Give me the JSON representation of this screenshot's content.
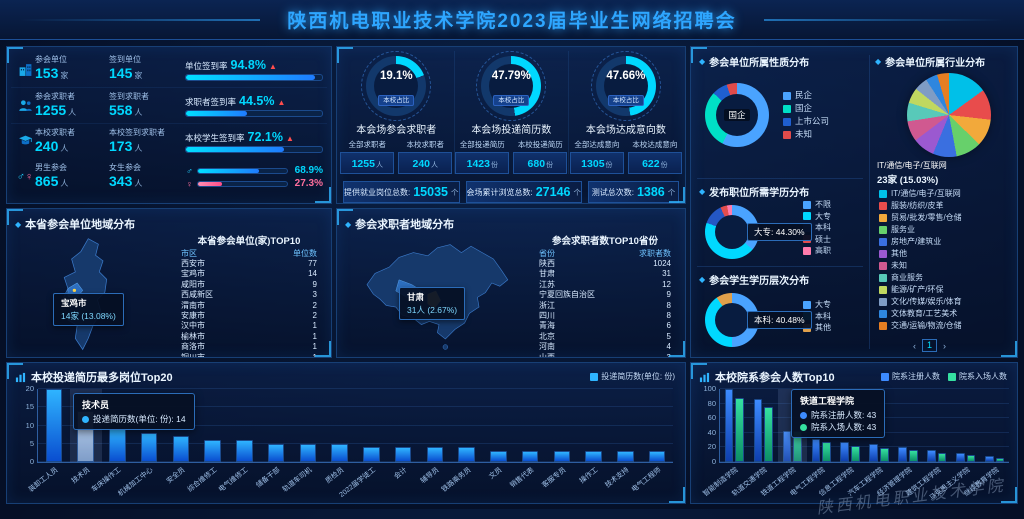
{
  "header": {
    "title": "陕西机电职业技术学院2023届毕业生网络招聘会"
  },
  "colors": {
    "accent_cyan": "#00d8ff",
    "accent_blue": "#2f7bff",
    "up_arrow_red": "#ff4d4d",
    "female_pink": "#ff6e9c",
    "green": "#35e0a1"
  },
  "stats_panel": {
    "rows": [
      {
        "icon": "building-icon",
        "groups": [
          {
            "label": "参会单位",
            "value": "153",
            "unit": "家"
          },
          {
            "label": "签到单位",
            "value": "145",
            "unit": "家"
          }
        ],
        "rate_label": "单位签到率",
        "rate": "94.8%",
        "pct": 94.8,
        "arrow": "▲"
      },
      {
        "icon": "jobseekers-icon",
        "groups": [
          {
            "label": "参会求职者",
            "value": "1255",
            "unit": "人"
          },
          {
            "label": "签到求职者",
            "value": "558",
            "unit": "人"
          }
        ],
        "rate_label": "求职者签到率",
        "rate": "44.5%",
        "pct": 44.5,
        "arrow": "▲"
      },
      {
        "icon": "student-icon",
        "groups": [
          {
            "label": "本校求职者",
            "value": "240",
            "unit": "人"
          },
          {
            "label": "本校签到求职者",
            "value": "173",
            "unit": "人"
          }
        ],
        "rate_label": "本校学生签到率",
        "rate": "72.1%",
        "pct": 72.1,
        "arrow": "▲"
      }
    ],
    "gender_row": {
      "male": {
        "label": "男生参会",
        "value": "865",
        "unit": "人",
        "pct": "68.9%",
        "pct_num": 68.9
      },
      "female": {
        "label": "女生参会",
        "value": "343",
        "unit": "人",
        "pct": "27.3%",
        "pct_num": 27.3
      }
    }
  },
  "totals": [
    {
      "label": "提供就业岗位总数:",
      "value": "15035",
      "unit": "个"
    },
    {
      "label": "会场累计浏览总数:",
      "value": "27146",
      "unit": "个"
    },
    {
      "label": "测试总次数:",
      "value": "1386",
      "unit": "个"
    }
  ],
  "province_panel": {
    "title": "本省参会单位地域分布",
    "tooltip_name": "宝鸡市",
    "tooltip_value": "14家 (13.08%)"
  },
  "china_panel": {
    "title": "参会求职者地域分布",
    "tooltip_name": "甘肃",
    "tooltip_value": "31人 (2.67%)"
  },
  "right_panels": {
    "nature_center_label": "国企",
    "industry_highlight_name": "IT/通信/电子/互联网",
    "industry_highlight_value": "23家 (15.03%)",
    "job_edu_tooltip": "大专: 44.30%",
    "student_edu_tooltip": "本科: 40.48%",
    "paginator": {
      "prev": "‹",
      "page": "1",
      "next": "›"
    }
  },
  "watermark": "陕西机电职业技术学院",
  "chart_data": [
    {
      "id": "gauge-attendees",
      "type": "donut",
      "title": "本会场参会求职者",
      "percent": 19.1,
      "percent_label": "19.1%",
      "center_label": "本校占比",
      "stats": [
        {
          "label": "全部求职者",
          "value": "1255",
          "unit": "人"
        },
        {
          "label": "本校求职者",
          "value": "240",
          "unit": "人"
        }
      ]
    },
    {
      "id": "gauge-resumes",
      "type": "donut",
      "title": "本会场投递简历数",
      "percent": 47.79,
      "percent_label": "47.79%",
      "center_label": "本校占比",
      "stats": [
        {
          "label": "全部投递简历",
          "value": "1423",
          "unit": "份"
        },
        {
          "label": "本校投递简历",
          "value": "680",
          "unit": "份"
        }
      ]
    },
    {
      "id": "gauge-intents",
      "type": "donut",
      "title": "本会场达成意向数",
      "percent": 47.66,
      "percent_label": "47.66%",
      "center_label": "本校占比",
      "stats": [
        {
          "label": "全部达成意向",
          "value": "1305",
          "unit": "份"
        },
        {
          "label": "本校达成意向",
          "value": "622",
          "unit": "份"
        }
      ]
    },
    {
      "id": "unit-nature",
      "type": "pie",
      "title": "参会单位所属性质分布",
      "highlight": "国企",
      "segments": [
        {
          "label": "民企",
          "value": 88,
          "color": "#4aa3ff"
        },
        {
          "label": "国企",
          "value": 45,
          "color": "#00e0c6"
        },
        {
          "label": "上市公司",
          "value": 12,
          "color": "#1f5fd0"
        },
        {
          "label": "未知",
          "value": 8,
          "color": "#e04b4b"
        }
      ]
    },
    {
      "id": "unit-industry",
      "type": "pie",
      "title": "参会单位所属行业分布",
      "highlight": "IT/通信/电子/互联网",
      "highlight_value": "23家 (15.03%)",
      "segments": [
        {
          "label": "IT/通信/电子/互联网",
          "value": 23,
          "color": "#00c0e8"
        },
        {
          "label": "服装/纺织/皮革",
          "value": 18,
          "color": "#e84c4c"
        },
        {
          "label": "贸易/批发/零售/仓储",
          "value": 16,
          "color": "#f2a93b"
        },
        {
          "label": "服务业",
          "value": 15,
          "color": "#67d06b"
        },
        {
          "label": "房地产/建筑业",
          "value": 14,
          "color": "#3a6fe0"
        },
        {
          "label": "其他",
          "value": 13,
          "color": "#9b59d0"
        },
        {
          "label": "未知",
          "value": 12,
          "color": "#d05990"
        },
        {
          "label": "商业服务",
          "value": 11,
          "color": "#58c9b9"
        },
        {
          "label": "能源/矿产/环保",
          "value": 9,
          "color": "#c0d860"
        },
        {
          "label": "文化/传媒/娱乐/体育",
          "value": 8,
          "color": "#7f9cc4"
        },
        {
          "label": "文体教育/工艺美术",
          "value": 7,
          "color": "#2e86de"
        },
        {
          "label": "交通/运输/物流/仓储",
          "value": 7,
          "color": "#e67e22"
        }
      ]
    },
    {
      "id": "job-edu",
      "type": "donut",
      "title": "发布职位所需学历分布",
      "tooltip": "大专: 44.30%",
      "segments": [
        {
          "label": "不限",
          "value": 36.2,
          "color": "#4aa3ff"
        },
        {
          "label": "大专",
          "value": 44.3,
          "color": "#00d8ff"
        },
        {
          "label": "本科",
          "value": 12.5,
          "color": "#2457c5"
        },
        {
          "label": "硕士",
          "value": 4.0,
          "color": "#e34d4d"
        },
        {
          "label": "高职",
          "value": 3.0,
          "color": "#ff7bac"
        }
      ]
    },
    {
      "id": "student-edu",
      "type": "donut",
      "title": "参会学生学历层次分布",
      "tooltip": "本科: 40.48%",
      "segments": [
        {
          "label": "大专",
          "value": 50.0,
          "color": "#4aa3ff"
        },
        {
          "label": "本科",
          "value": 40.48,
          "color": "#00d8ff"
        },
        {
          "label": "其他",
          "value": 9.52,
          "color": "#e0a04b"
        }
      ]
    },
    {
      "id": "province-table",
      "type": "table",
      "title": "本省参会单位(家)TOP10",
      "headers": [
        "市区",
        "单位数"
      ],
      "rows": [
        [
          "西安市",
          "77"
        ],
        [
          "宝鸡市",
          "14"
        ],
        [
          "咸阳市",
          "9"
        ],
        [
          "西咸新区",
          "3"
        ],
        [
          "渭南市",
          "2"
        ],
        [
          "安康市",
          "2"
        ],
        [
          "汉中市",
          "1"
        ],
        [
          "榆林市",
          "1"
        ],
        [
          "商洛市",
          "1"
        ],
        [
          "铜川市",
          "1"
        ]
      ]
    },
    {
      "id": "applicant-table",
      "type": "table",
      "title": "参会求职者数TOP10省份",
      "headers": [
        "省份",
        "求职者数"
      ],
      "rows": [
        [
          "陕西",
          "1024"
        ],
        [
          "甘肃",
          "31"
        ],
        [
          "江苏",
          "12"
        ],
        [
          "宁夏回族自治区",
          "9"
        ],
        [
          "浙江",
          "8"
        ],
        [
          "四川",
          "8"
        ],
        [
          "青海",
          "6"
        ],
        [
          "北京",
          "5"
        ],
        [
          "河南",
          "4"
        ],
        [
          "山西",
          "3"
        ]
      ]
    },
    {
      "id": "resume-top20",
      "type": "bar",
      "title": "本校投递简历最多岗位Top20",
      "legend": "投递简历数(单位: 份)",
      "color": "#2fb4ff",
      "color2": "#0a4ed0",
      "ylim": [
        0,
        20
      ],
      "yticks": [
        0,
        5,
        10,
        15,
        20
      ],
      "highlight_index": 1,
      "tooltip": {
        "name": "技术员",
        "line": "投递简历数(单位: 份): 14"
      },
      "categories": [
        "装卸工人员",
        "技术员",
        "车床操作工",
        "机械加工中心",
        "安全员",
        "综合维修工",
        "电气维修工",
        "储备干部",
        "轨道车司机",
        "质检员",
        "2022届学徒工",
        "会计",
        "辅导员",
        "铁路乘务员",
        "文员",
        "销售代表",
        "客服专员",
        "操作工",
        "技术支持",
        "电气工程师"
      ],
      "values": [
        20,
        14,
        9,
        8,
        7,
        6,
        6,
        5,
        5,
        5,
        4,
        4,
        4,
        4,
        3,
        3,
        3,
        3,
        3,
        3
      ]
    },
    {
      "id": "faculty-top10",
      "type": "bar",
      "title": "本校院系参会人数Top10",
      "ylim": [
        0,
        100
      ],
      "yticks": [
        0,
        20,
        40,
        60,
        80,
        100
      ],
      "highlight_index": 2,
      "tooltip": {
        "name": "铁道工程学院",
        "lines": [
          "院系注册人数: 43",
          "院系入场人数: 43"
        ]
      },
      "categories": [
        "智能制造学院",
        "轨道交通学院",
        "铁道工程学院",
        "电气工程学院",
        "信息工程学院",
        "汽车工程学院",
        "经济管理学院",
        "建筑工程学院",
        "马克思主义学院",
        "继续教育学院"
      ],
      "series": [
        {
          "name": "院系注册人数",
          "color": "#3d8bff",
          "color2": "#0e3fae",
          "values": [
            100,
            86,
            43,
            31,
            27,
            24,
            20,
            16,
            12,
            8
          ]
        },
        {
          "name": "院系入场人数",
          "color": "#35e0a1",
          "color2": "#0c8f66",
          "values": [
            88,
            76,
            43,
            27,
            22,
            19,
            16,
            13,
            9,
            6
          ]
        }
      ]
    }
  ]
}
